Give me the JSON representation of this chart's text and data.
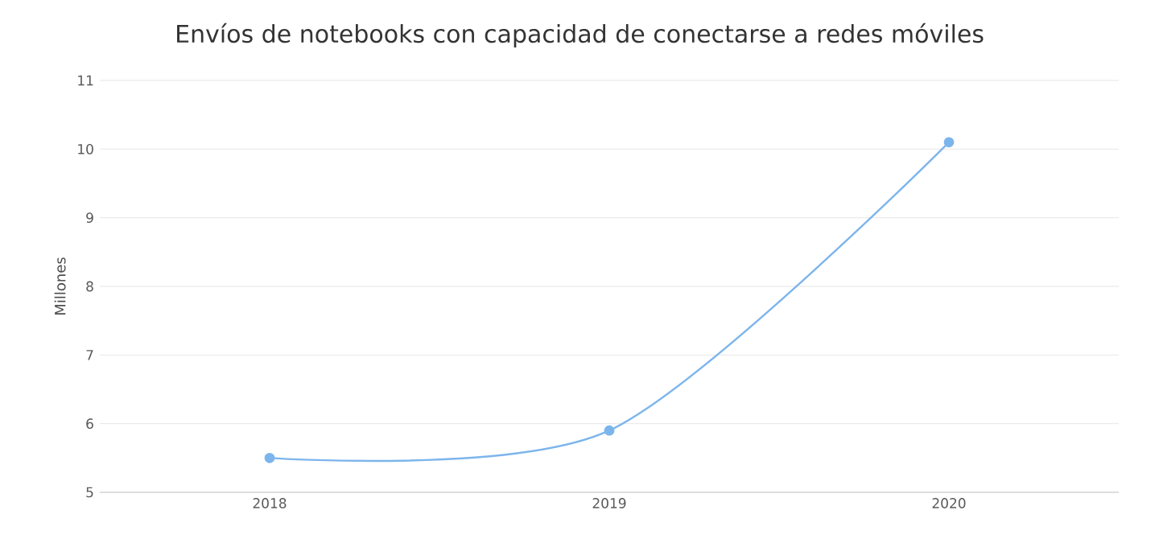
{
  "chart_data": {
    "type": "line",
    "title": "Envíos de notebooks con capacidad de conectarse a redes móviles",
    "ylabel": "Millones",
    "categories": [
      "2018",
      "2019",
      "2020"
    ],
    "series": [
      {
        "color": "#7cb5ec",
        "values": [
          5.5,
          5.9,
          10.1
        ]
      }
    ],
    "ylim": [
      5,
      11
    ],
    "yticks": [
      5,
      6,
      7,
      8,
      9,
      10,
      11
    ],
    "grid": "y",
    "marker": "circle",
    "legend": false
  }
}
